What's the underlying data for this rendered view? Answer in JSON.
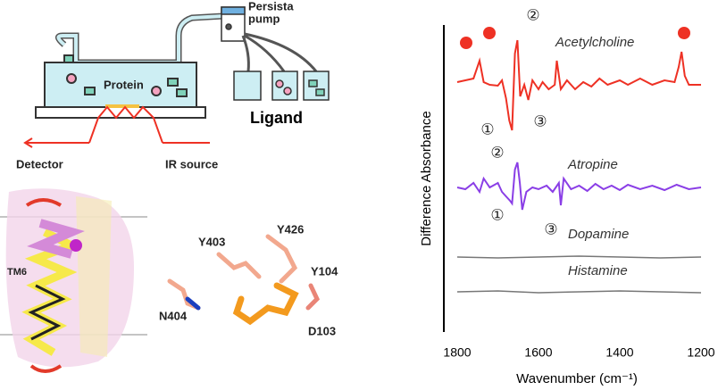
{
  "diagram": {
    "pump_label": [
      "Persista",
      "pump"
    ],
    "protein_label": "Protein",
    "ligand_label": "Ligand",
    "detector_label": "Detector",
    "ir_source_label": "IR source",
    "helix_label": "TM6",
    "residues": [
      "Y403",
      "Y426",
      "Y104",
      "N404",
      "D103"
    ]
  },
  "chart_data": {
    "type": "line",
    "x_label": "Wavenumber (cm⁻¹)",
    "y_label": "Difference Absorbance",
    "xlim": [
      1833,
      1200
    ],
    "ylim": [
      0,
      340
    ],
    "xticks": [
      1800,
      1600,
      1400,
      1200
    ],
    "annotations": [
      "②",
      "①",
      "③",
      "②",
      "①",
      "③"
    ],
    "series": [
      {
        "name": "Acetylcholine",
        "color": "#ee3124",
        "x": [
          1800,
          1760,
          1745,
          1735,
          1720,
          1700,
          1690,
          1680,
          1672,
          1665,
          1658,
          1652,
          1645,
          1635,
          1625,
          1615,
          1600,
          1590,
          1575,
          1560,
          1555,
          1545,
          1530,
          1510,
          1490,
          1470,
          1450,
          1430,
          1400,
          1380,
          1350,
          1320,
          1290,
          1265,
          1255,
          1248,
          1240,
          1230,
          1200
        ],
        "values": [
          278,
          282,
          302,
          278,
          275,
          274,
          280,
          260,
          235,
          224,
          310,
          325,
          262,
          275,
          258,
          280,
          270,
          278,
          270,
          275,
          302,
          270,
          280,
          270,
          278,
          273,
          282,
          275,
          280,
          275,
          282,
          275,
          280,
          278,
          295,
          312,
          285,
          275,
          275
        ]
      },
      {
        "name": "Atropine",
        "color": "#8a3ee6",
        "x": [
          1800,
          1780,
          1760,
          1745,
          1735,
          1720,
          1700,
          1690,
          1680,
          1670,
          1665,
          1658,
          1652,
          1646,
          1640,
          1630,
          1615,
          1600,
          1580,
          1565,
          1550,
          1545,
          1538,
          1520,
          1500,
          1480,
          1460,
          1440,
          1420,
          1400,
          1380,
          1350,
          1320,
          1290,
          1260,
          1230,
          1200
        ],
        "values": [
          160,
          158,
          165,
          155,
          170,
          160,
          165,
          155,
          150,
          145,
          142,
          180,
          188,
          165,
          135,
          155,
          160,
          158,
          162,
          155,
          165,
          140,
          170,
          158,
          162,
          156,
          164,
          158,
          162,
          157,
          163,
          158,
          162,
          157,
          163,
          158,
          160
        ]
      },
      {
        "name": "Dopamine",
        "color": "#777777",
        "x": [
          1800,
          1700,
          1600,
          1500,
          1400,
          1300,
          1200
        ],
        "values": [
          82,
          81,
          82,
          83,
          82,
          81,
          82
        ]
      },
      {
        "name": "Histamine",
        "color": "#777777",
        "x": [
          1800,
          1700,
          1600,
          1500,
          1400,
          1300,
          1200
        ],
        "values": [
          43,
          44,
          42,
          43,
          44,
          43,
          42
        ]
      }
    ]
  }
}
